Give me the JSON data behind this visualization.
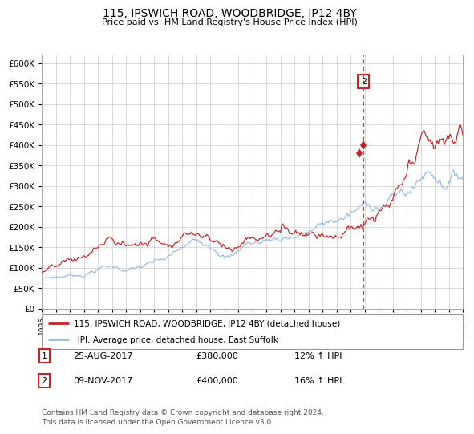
{
  "title": "115, IPSWICH ROAD, WOODBRIDGE, IP12 4BY",
  "subtitle": "Price paid vs. HM Land Registry's House Price Index (HPI)",
  "hpi_color": "#99bbdd",
  "price_color": "#cc2222",
  "marker_color": "#cc2222",
  "dashed_line_color": "#cc2222",
  "background_color": "#ffffff",
  "grid_color": "#cccccc",
  "ylim": [
    0,
    620000
  ],
  "yticks": [
    0,
    50000,
    100000,
    150000,
    200000,
    250000,
    300000,
    350000,
    400000,
    450000,
    500000,
    550000,
    600000
  ],
  "x_start_year": 1995,
  "x_end_year": 2025,
  "legend_entries": [
    "115, IPSWICH ROAD, WOODBRIDGE, IP12 4BY (detached house)",
    "HPI: Average price, detached house, East Suffolk"
  ],
  "sale1_year": 2017.64,
  "sale1_price": 380000,
  "sale2_year": 2017.92,
  "sale2_price": 400000,
  "annotation2_price": 555000,
  "footnote_line1": "Contains HM Land Registry data © Crown copyright and database right 2024.",
  "footnote_line2": "This data is licensed under the Open Government Licence v3.0.",
  "table_rows": [
    [
      "1",
      "25-AUG-2017",
      "£380,000",
      "12% ↑ HPI"
    ],
    [
      "2",
      "09-NOV-2017",
      "£400,000",
      "16% ↑ HPI"
    ]
  ]
}
